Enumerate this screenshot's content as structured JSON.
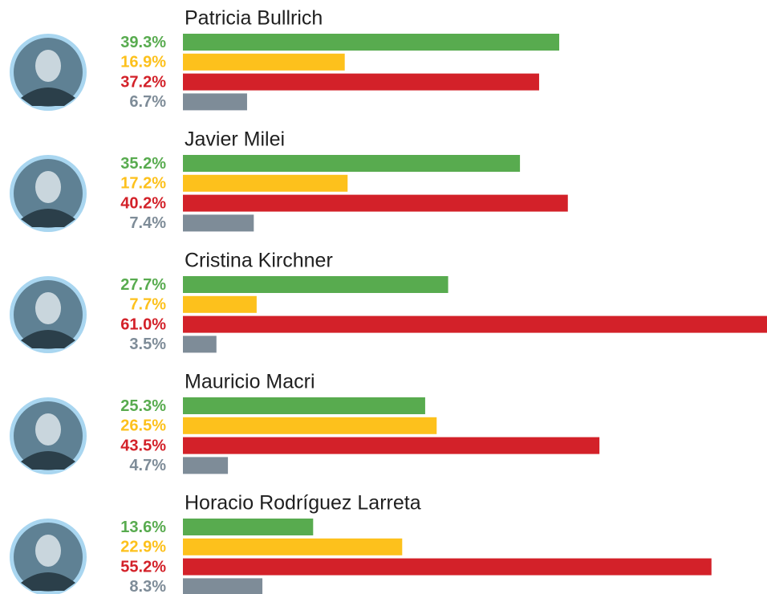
{
  "chart_data": {
    "type": "bar",
    "categories": [
      "Patricia Bullrich",
      "Javier Milei",
      "Cristina Kirchner",
      "Mauricio Macri",
      "Horacio Rodríguez Larreta"
    ],
    "series": [
      {
        "color": "#58ab4f",
        "values": [
          39.3,
          35.2,
          27.7,
          25.3,
          13.6
        ],
        "value_labels": [
          "39.3%",
          "35.2%",
          "27.7%",
          "25.3%",
          "13.6%"
        ]
      },
      {
        "color": "#fdc11c",
        "values": [
          16.9,
          17.2,
          7.7,
          26.5,
          22.9
        ],
        "value_labels": [
          "16.9%",
          "17.2%",
          "7.7%",
          "26.5%",
          "22.9%"
        ]
      },
      {
        "color": "#d32129",
        "values": [
          37.2,
          40.2,
          61.0,
          43.5,
          55.2
        ],
        "value_labels": [
          "37.2%",
          "40.2%",
          "61.0%",
          "43.5%",
          "55.2%"
        ]
      },
      {
        "color": "#7e8c98",
        "values": [
          6.7,
          7.4,
          3.5,
          4.7,
          8.3
        ],
        "value_labels": [
          "6.7%",
          "7.4%",
          "3.5%",
          "4.7%",
          "8.3%"
        ]
      }
    ]
  }
}
